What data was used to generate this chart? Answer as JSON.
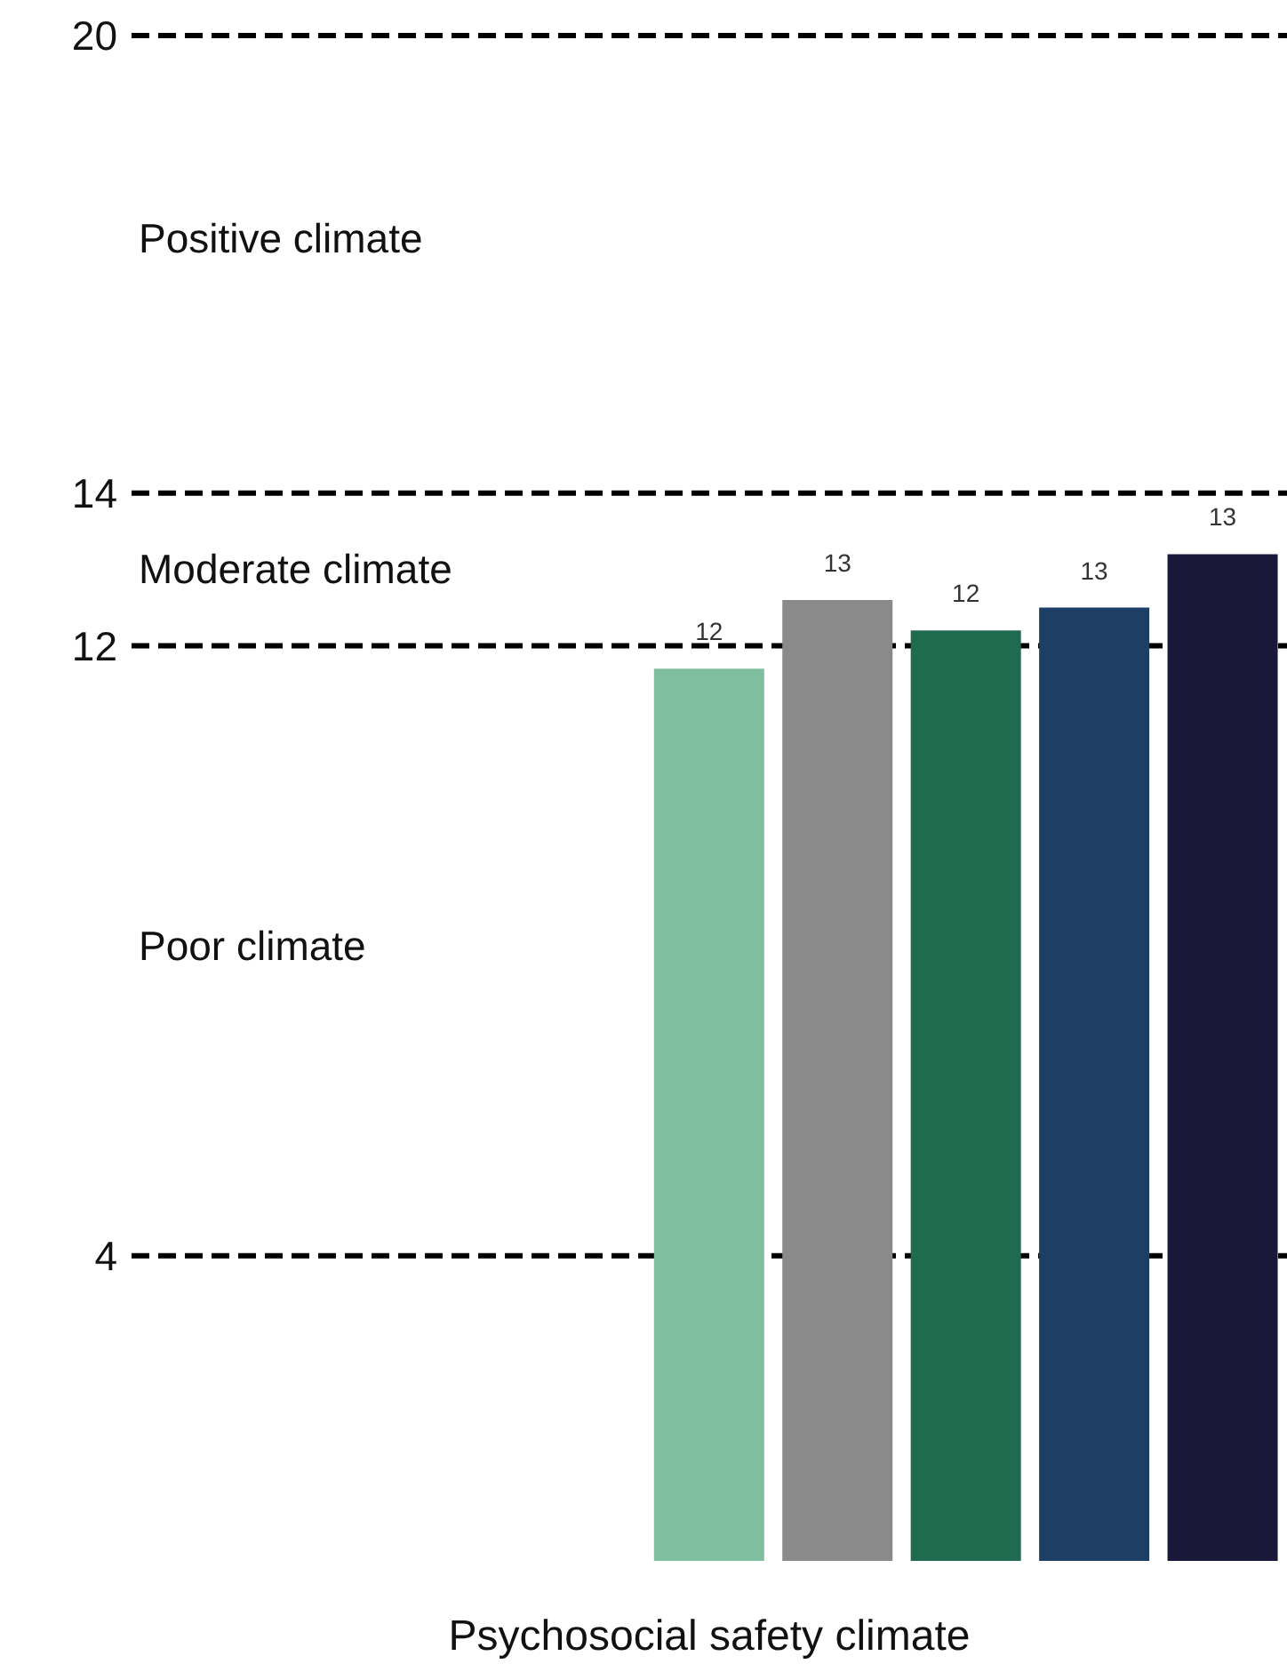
{
  "chart_data": {
    "type": "bar",
    "xlabel": "Psychosocial safety climate",
    "categories": [
      null,
      null,
      null,
      null,
      null,
      null,
      null,
      null,
      null
    ],
    "values": [
      null,
      null,
      null,
      null,
      11.7,
      12.6,
      12.2,
      12.5,
      13.2
    ],
    "value_labels": [
      null,
      null,
      null,
      null,
      "12",
      "13",
      "12",
      "13",
      "13"
    ],
    "colors": [
      null,
      null,
      null,
      null,
      "#7fbfa0",
      "#8a8a8a",
      "#1f6b50",
      "#1d3f66",
      "#1a1838"
    ],
    "ylim": [
      0,
      20
    ],
    "yticks": [
      4,
      12,
      14,
      20
    ],
    "grid": "y",
    "annotations": [
      "Positive climate",
      "Moderate climate",
      "Poor climate"
    ]
  }
}
